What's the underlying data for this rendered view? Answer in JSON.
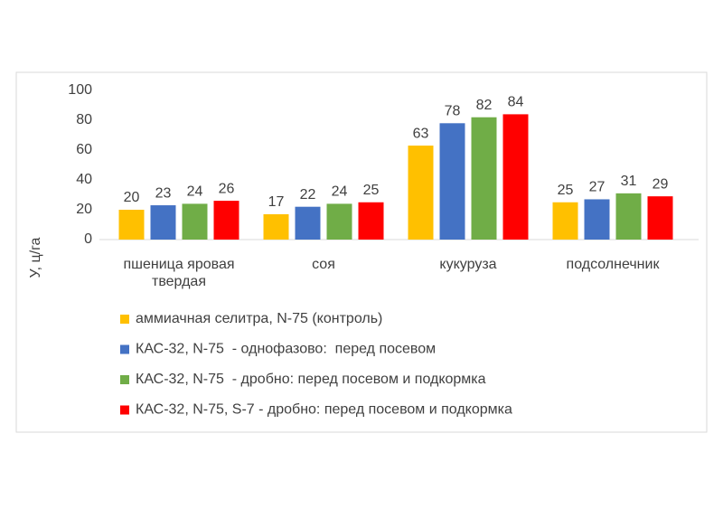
{
  "chart_data": {
    "type": "bar",
    "y_label": "У, ц/га",
    "categories": [
      "пшеница яровая твердая",
      "соя",
      "кукуруза",
      "подсолнечник"
    ],
    "series": [
      {
        "name": "аммиачная селитра, N-75 (контроль)",
        "color": "#ffc000",
        "values": [
          20,
          17,
          63,
          25
        ]
      },
      {
        "name": "КАС-32, N-75  - однофазово:  перед посевом",
        "color": "#4472c4",
        "values": [
          23,
          22,
          78,
          27
        ]
      },
      {
        "name": "КАС-32, N-75  - дробно: перед посевом и подкормка",
        "color": "#70ad47",
        "values": [
          24,
          24,
          82,
          31
        ]
      },
      {
        "name": "КАС-32, N-75, S-7 - дробно: перед посевом и подкормка",
        "color": "#ff0000",
        "values": [
          26,
          25,
          84,
          29
        ]
      }
    ],
    "ylim": [
      0,
      100
    ],
    "yticks": [
      0,
      20,
      40,
      60,
      80,
      100
    ],
    "grid": false
  }
}
